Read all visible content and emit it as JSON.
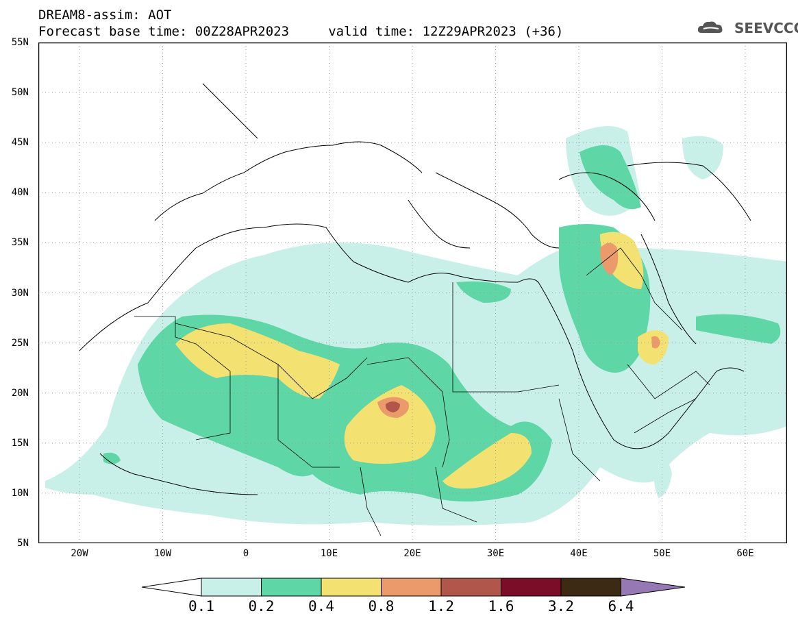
{
  "header": {
    "line1": "DREAM8-assim: AOT",
    "line2": "Forecast base time: 00Z28APR2023     valid time: 12Z29APR2023 (+36)"
  },
  "logo": {
    "text": "SEEVCCC",
    "icon": "cloud-icon"
  },
  "map": {
    "lat_labels": [
      "55N",
      "50N",
      "45N",
      "40N",
      "35N",
      "30N",
      "25N",
      "20N",
      "15N",
      "10N",
      "5N"
    ],
    "lon_labels": [
      "20W",
      "10W",
      "0",
      "10E",
      "20E",
      "30E",
      "40E",
      "50E",
      "60E"
    ]
  },
  "colorbar": {
    "labels": [
      "0.1",
      "0.2",
      "0.4",
      "0.8",
      "1.2",
      "1.6",
      "3.2",
      "6.4"
    ],
    "colors": [
      "#c8f0e8",
      "#5ed6a6",
      "#f3e272",
      "#ea9a6b",
      "#b1564a",
      "#7b0d28",
      "#3d2a14",
      "#9678b4"
    ]
  }
}
